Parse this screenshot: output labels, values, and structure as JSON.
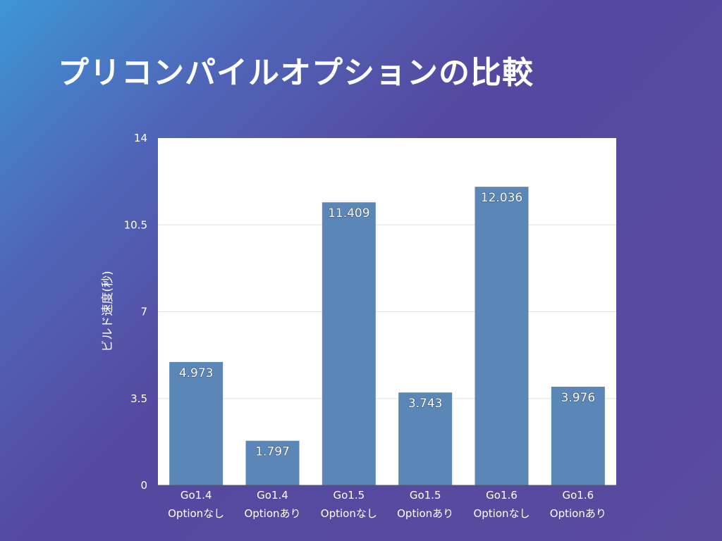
{
  "slide": {
    "title": "プリコンパイルオプションの比較",
    "background_colors": [
      "#3d96d6",
      "#5448a0"
    ]
  },
  "chart_data": {
    "type": "bar",
    "title": "",
    "xlabel": "",
    "ylabel": "ビルド速度(秒)",
    "ylim": [
      0,
      14
    ],
    "yticks": [
      0,
      3.5,
      7,
      10.5,
      14
    ],
    "ytick_labels": [
      "0",
      "3.5",
      "7",
      "10.5",
      "14"
    ],
    "grid": true,
    "legend": "none",
    "categories": [
      [
        "Go1.4",
        "Optionなし"
      ],
      [
        "Go1.4",
        "Optionあり"
      ],
      [
        "Go1.5",
        "Optionなし"
      ],
      [
        "Go1.5",
        "Optionあり"
      ],
      [
        "Go1.6",
        "Optionなし"
      ],
      [
        "Go1.6",
        "Optionあり"
      ]
    ],
    "values": [
      4.973,
      1.797,
      11.409,
      3.743,
      12.036,
      3.976
    ],
    "value_labels": [
      "4.973",
      "1.797",
      "11.409",
      "3.743",
      "12.036",
      "3.976"
    ],
    "bar_color": "#5b86b8",
    "plot_background": "#ffffff"
  }
}
